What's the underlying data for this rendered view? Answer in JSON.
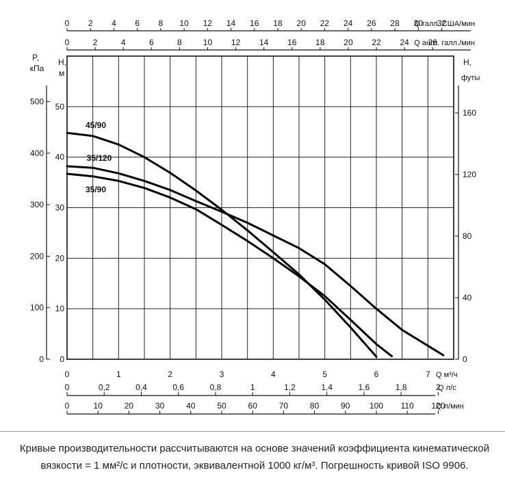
{
  "chart_data": {
    "type": "line",
    "x_unit": "Q м³/ч",
    "y_unit_left_pressure": "P, кПа",
    "y_unit_left_head": "H, м",
    "y_unit_right_head": "H, футы",
    "xlim": [
      0,
      7.5
    ],
    "ylim": [
      0,
      50
    ],
    "top_axes": [
      {
        "unit": "Q галл. США/мин",
        "ticks": [
          "0",
          "2",
          "4",
          "6",
          "8",
          "10",
          "12",
          "14",
          "16",
          "18",
          "20",
          "22",
          "24",
          "26",
          "28",
          "30",
          "32"
        ],
        "values": [
          0,
          2,
          4,
          6,
          8,
          10,
          12,
          14,
          16,
          18,
          20,
          22,
          24,
          26,
          28,
          30,
          32
        ]
      },
      {
        "unit": "Q англ. галл./мин",
        "ticks": [
          "0",
          "2",
          "4",
          "6",
          "8",
          "10",
          "12",
          "14",
          "16",
          "18",
          "20",
          "22",
          "24",
          "26"
        ],
        "values": [
          0,
          2,
          4,
          6,
          8,
          10,
          12,
          14,
          16,
          18,
          20,
          22,
          24,
          26
        ]
      }
    ],
    "bottom_axes": [
      {
        "unit": "Q м³/ч",
        "ticks": [
          "0",
          "1",
          "2",
          "3",
          "4",
          "5",
          "6",
          "7"
        ],
        "values": [
          0,
          1,
          2,
          3,
          4,
          5,
          6,
          7
        ]
      },
      {
        "unit": "Q л/с",
        "ticks": [
          "0",
          "0,2",
          "0,4",
          "0,6",
          "0,8",
          "1",
          "1,2",
          "1,4",
          "1,6",
          "1,8",
          "2"
        ],
        "values": [
          0,
          0.2,
          0.4,
          0.6,
          0.8,
          1,
          1.2,
          1.4,
          1.6,
          1.8,
          2
        ]
      },
      {
        "unit": "Q л/мин",
        "ticks": [
          "0",
          "10",
          "20",
          "30",
          "40",
          "50",
          "60",
          "70",
          "80",
          "90",
          "100",
          "110",
          "120"
        ],
        "values": [
          0,
          10,
          20,
          30,
          40,
          50,
          60,
          70,
          80,
          90,
          100,
          110,
          120
        ]
      }
    ],
    "left_pressure_ticks": [
      "0",
      "100",
      "200",
      "300",
      "400",
      "500"
    ],
    "left_pressure_values": [
      0,
      100,
      200,
      300,
      400,
      500
    ],
    "left_head_ticks": [
      "0",
      "10",
      "20",
      "30",
      "40",
      "50"
    ],
    "left_head_values": [
      0,
      10,
      20,
      30,
      40,
      50
    ],
    "right_head_ticks": [
      "0",
      "40",
      "80",
      "120",
      "160"
    ],
    "right_head_values": [
      0,
      40,
      80,
      120,
      160
    ],
    "grid": true,
    "series": [
      {
        "name": "45/90",
        "x": [
          0,
          0.5,
          1,
          1.5,
          2,
          2.5,
          3,
          3.5,
          4,
          4.5,
          5,
          5.5,
          6.0
        ],
        "y": [
          44.8,
          44.2,
          42.5,
          40.0,
          36.9,
          33.4,
          29.6,
          25.5,
          21.2,
          16.8,
          11.8,
          6.3,
          0.5
        ]
      },
      {
        "name": "35/120",
        "x": [
          0,
          0.5,
          1,
          1.5,
          2,
          2.5,
          3,
          3.5,
          4,
          4.5,
          5,
          5.5,
          6,
          6.5,
          7.3
        ],
        "y": [
          38.2,
          37.9,
          36.8,
          35.3,
          33.5,
          31.3,
          29.2,
          27.0,
          24.5,
          22.0,
          18.8,
          14.5,
          10.0,
          5.8,
          0.8
        ]
      },
      {
        "name": "35/90",
        "x": [
          0,
          0.5,
          1,
          1.5,
          2,
          2.5,
          3,
          3.5,
          4,
          4.5,
          5,
          5.5,
          6,
          6.3
        ],
        "y": [
          36.7,
          36.2,
          35.3,
          33.9,
          32.0,
          29.7,
          26.6,
          23.4,
          20.0,
          16.4,
          12.5,
          7.8,
          3.0,
          0.6
        ]
      }
    ]
  },
  "footer": {
    "line1": "Кривые производительности рассчитываются на основе значений коэффициента кинематической",
    "line2": "вязкости = 1 мм²/с и плотности, эквивалентной 1000 кг/м³. Погрешность кривой ISO 9906."
  }
}
